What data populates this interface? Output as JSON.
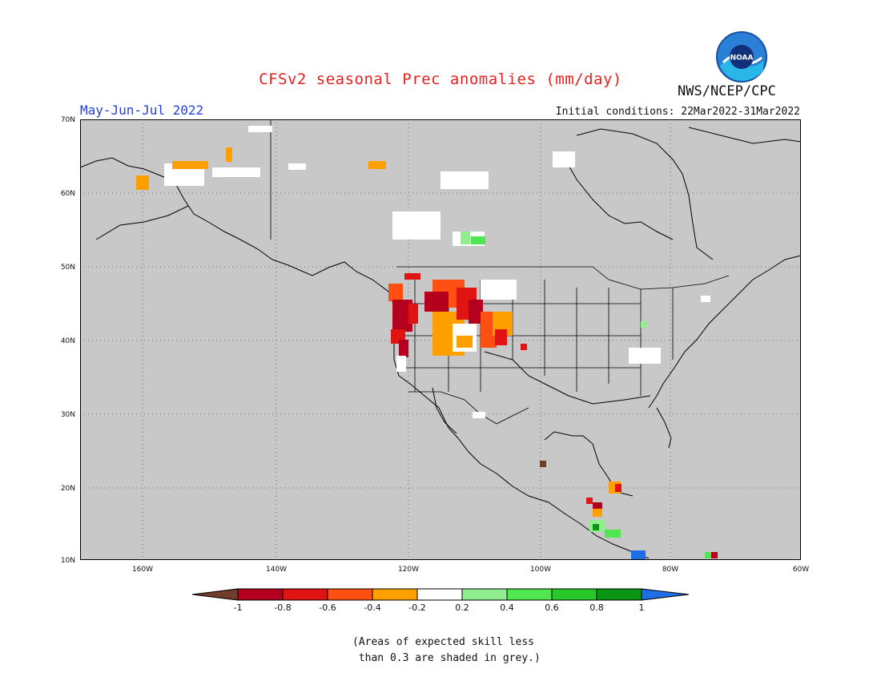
{
  "header": {
    "title": "CFSv2 seasonal Prec anomalies (mm/day)",
    "org": "NWS/NCEP/CPC",
    "logo_text": "NOAA",
    "period": "May-Jun-Jul 2022",
    "initial_conditions": "Initial conditions: 22Mar2022-31Mar2022"
  },
  "map": {
    "lat_labels": [
      "70N",
      "60N",
      "50N",
      "40N",
      "30N",
      "20N",
      "10N"
    ],
    "lon_labels": [
      "160W",
      "140W",
      "120W",
      "100W",
      "80W",
      "60W"
    ],
    "land_color": "#c8c8c8",
    "grid": "dotted",
    "features": [
      {
        "region": "Pacific Northwest / Northern Rockies",
        "anomaly": "-1 to -0.2"
      },
      {
        "region": "Western Alaska",
        "anomaly": "-0.4 to -0.2"
      },
      {
        "region": "Southern Canada prairies",
        "anomaly": "0.2 to 0.6"
      },
      {
        "region": "Central America",
        "anomaly": "mixed -1 to 1"
      }
    ]
  },
  "colorbar": {
    "labels": [
      "-1",
      "-0.8",
      "-0.6",
      "-0.4",
      "-0.2",
      "0.2",
      "0.4",
      "0.6",
      "0.8",
      "1"
    ],
    "colors": {
      "below_min": "#703c2c",
      "bins": [
        "#b4001e",
        "#e11414",
        "#ff5014",
        "#ffa000",
        "#ffffff",
        "#90ee90",
        "#50e650",
        "#28c828",
        "#0a9614"
      ],
      "above_max": "#1e6ee6"
    }
  },
  "note": {
    "line1": "(Areas of expected skill less",
    "line2": " than 0.3 are shaded in grey.)"
  }
}
